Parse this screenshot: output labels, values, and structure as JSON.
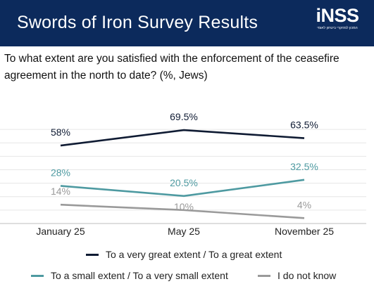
{
  "header": {
    "title": "Swords of Iron Survey Results",
    "logo_text": "iNSS",
    "logo_subtitle": "המכון למחקרי ביטחון לאומי"
  },
  "question": "To what extent are you satisfied with the enforcement of the ceasefire agreement in the north to date? (%, Jews)",
  "colors": {
    "header_bg": "#0c2a5c",
    "series_great": "#0f1b33",
    "series_small": "#4e9aa1",
    "series_unknown": "#9a9a9a"
  },
  "chart_data": {
    "type": "line",
    "categories": [
      "January 25",
      "May 25",
      "November 25"
    ],
    "ylim": [
      0,
      80
    ],
    "grid": true,
    "legend_placement": "bottom",
    "series": [
      {
        "name": "To a very great extent / To a great extent",
        "values": [
          58,
          69.5,
          63.5
        ],
        "labels": [
          "58%",
          "69.5%",
          "63.5%"
        ],
        "color": "#0f1b33"
      },
      {
        "name": "To a small extent / To a very small extent",
        "values": [
          28,
          20.5,
          32.5
        ],
        "labels": [
          "28%",
          "20.5%",
          "32.5%"
        ],
        "color": "#4e9aa1"
      },
      {
        "name": "I do not know",
        "values": [
          14,
          10,
          4
        ],
        "labels": [
          "14%",
          "10%",
          "4%"
        ],
        "color": "#9a9a9a"
      }
    ]
  }
}
